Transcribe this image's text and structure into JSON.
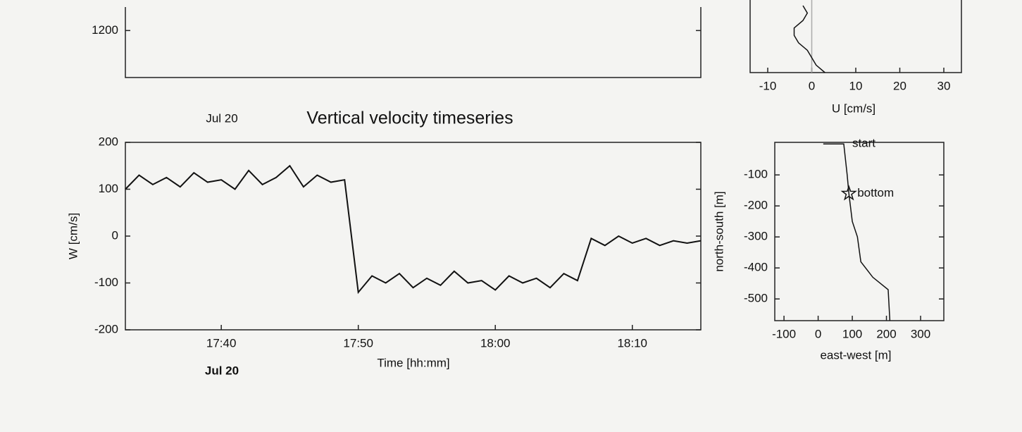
{
  "chart_data": [
    {
      "type": "line",
      "ylim": [
        1100,
        1250
      ],
      "yticks": [
        1200
      ]
    },
    {
      "type": "profile",
      "xlabel": "U [cm/s]",
      "xlim": [
        -14,
        34
      ],
      "xticks": [
        -10,
        0,
        10,
        20,
        30
      ],
      "vline": 0,
      "values": [
        -2,
        -1,
        -2,
        -4,
        -4,
        -3,
        -1,
        0,
        1,
        3
      ],
      "color": "#111111"
    },
    {
      "type": "timeseries",
      "title": "Vertical velocity timeseries",
      "date_label_top": "Jul 20",
      "date_label_bottom": "Jul 20",
      "xlabel": "Time [hh:mm]",
      "ylabel": "W [cm/s]",
      "xlim": [
        "17:33",
        "18:15"
      ],
      "xticks": [
        "17:40",
        "17:50",
        "18:00",
        "18:10"
      ],
      "ylim": [
        -200,
        200
      ],
      "yticks": [
        -200,
        -100,
        0,
        100,
        200
      ],
      "color": "#111111",
      "x": [
        "17:33",
        "17:34",
        "17:35",
        "17:36",
        "17:37",
        "17:38",
        "17:39",
        "17:40",
        "17:41",
        "17:42",
        "17:43",
        "17:44",
        "17:45",
        "17:46",
        "17:47",
        "17:48",
        "17:49",
        "17:50",
        "17:51",
        "17:52",
        "17:53",
        "17:54",
        "17:55",
        "17:56",
        "17:57",
        "17:58",
        "17:59",
        "18:00",
        "18:01",
        "18:02",
        "18:03",
        "18:04",
        "18:05",
        "18:06",
        "18:07",
        "18:08",
        "18:09",
        "18:10",
        "18:11",
        "18:12",
        "18:13",
        "18:14",
        "18:15"
      ],
      "values": [
        100,
        130,
        110,
        125,
        105,
        135,
        115,
        120,
        100,
        140,
        110,
        125,
        150,
        105,
        130,
        115,
        120,
        -120,
        -85,
        -100,
        -80,
        -110,
        -90,
        -105,
        -75,
        -100,
        -95,
        -115,
        -85,
        -100,
        -90,
        -110,
        -80,
        -95,
        -5,
        -20,
        0,
        -15,
        -5,
        -20,
        -10,
        -15,
        -10
      ]
    },
    {
      "type": "track",
      "xlabel": "east-west [m]",
      "ylabel": "north-south [m]",
      "xlim": [
        -127,
        368
      ],
      "xticks": [
        -100,
        0,
        100,
        200,
        300
      ],
      "ylim": [
        -570,
        5
      ],
      "yticks": [
        -100,
        -200,
        -300,
        -400,
        -500
      ],
      "color": "#111111",
      "x": [
        15,
        75,
        80,
        85,
        90,
        100,
        115,
        125,
        160,
        205,
        210
      ],
      "values": [
        0,
        0,
        -50,
        -100,
        -160,
        -250,
        -300,
        -380,
        -430,
        -470,
        -570
      ],
      "annotations": [
        {
          "text": "start",
          "x": 75,
          "y": 0
        },
        {
          "text": "bottom",
          "x": 90,
          "y": -160,
          "marker": "star"
        }
      ]
    }
  ]
}
